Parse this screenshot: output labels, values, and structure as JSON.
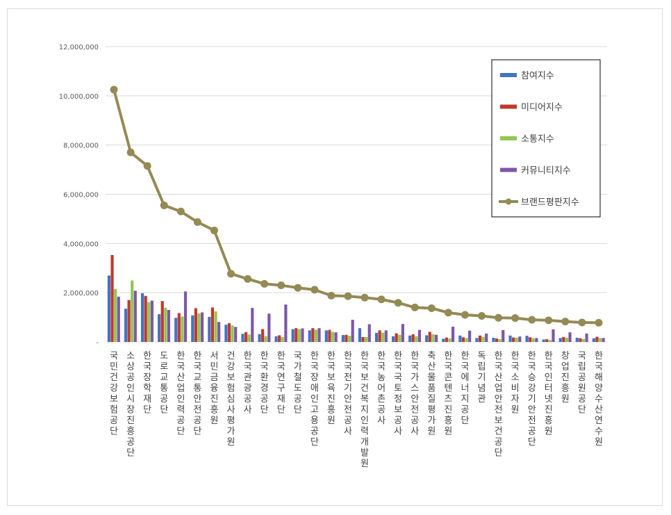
{
  "chart_data": {
    "type": "bar",
    "ylim": [
      0,
      12000000
    ],
    "yticks": [
      {
        "value": 0,
        "label": "-"
      },
      {
        "value": 2000000,
        "label": "2,000,000"
      },
      {
        "value": 4000000,
        "label": "4,000,000"
      },
      {
        "value": 6000000,
        "label": "6,000,000"
      },
      {
        "value": 8000000,
        "label": "8,000,000"
      },
      {
        "value": 10000000,
        "label": "10,000,000"
      },
      {
        "value": 12000000,
        "label": "12,000,000"
      }
    ],
    "grid": true,
    "legend_position": "top-right",
    "categories": [
      "국민건강보험공단",
      "소상공인시장진흥공단",
      "한국장학재단",
      "도로교통공단",
      "한국산업인력공단",
      "한국교통안전공단",
      "서민금융진흥원",
      "건강보험심사평가원",
      "한국관광공사",
      "한국환경공단",
      "한국연구재단",
      "국가철도공단",
      "한국장애인고용공단",
      "한국보육진흥원",
      "한국전기안전공사",
      "한국보건복지인력개발원",
      "한국농어촌공사",
      "한국국토정보공사",
      "한국가스안전공사",
      "축산물품질평가원",
      "한국콘텐츠진흥원",
      "한국에너지공단",
      "독립기념관",
      "한국산업안전보건공단",
      "한국소비자원",
      "한국승강기안전공단",
      "한국인터넷진흥원",
      "창업진흥원",
      "국립공원공단",
      "한국해양수산연수원"
    ],
    "series": [
      {
        "name": "참여지수",
        "type": "bar",
        "color": "#4472C4",
        "values": [
          2700000,
          1350000,
          1980000,
          1130000,
          980000,
          1080000,
          1020000,
          700000,
          330000,
          320000,
          230000,
          520000,
          470000,
          470000,
          280000,
          560000,
          370000,
          230000,
          260000,
          270000,
          130000,
          260000,
          160000,
          170000,
          260000,
          250000,
          100000,
          160000,
          170000,
          150000
        ]
      },
      {
        "name": "미디어지수",
        "type": "bar",
        "color": "#C0392B",
        "values": [
          3530000,
          1700000,
          1870000,
          1660000,
          1170000,
          1370000,
          1400000,
          760000,
          400000,
          520000,
          270000,
          560000,
          560000,
          490000,
          290000,
          200000,
          470000,
          350000,
          310000,
          410000,
          180000,
          190000,
          260000,
          140000,
          180000,
          190000,
          110000,
          200000,
          150000,
          210000
        ]
      },
      {
        "name": "소통지수",
        "type": "bar",
        "color": "#92C755",
        "values": [
          2150000,
          2500000,
          1620000,
          1390000,
          1030000,
          1160000,
          1240000,
          670000,
          300000,
          230000,
          200000,
          520000,
          500000,
          410000,
          250000,
          200000,
          380000,
          290000,
          230000,
          310000,
          140000,
          160000,
          210000,
          110000,
          170000,
          150000,
          80000,
          170000,
          120000,
          160000
        ]
      },
      {
        "name": "커뮤니티지수",
        "type": "bar",
        "color": "#7E57A8",
        "values": [
          1840000,
          2080000,
          1680000,
          1300000,
          2050000,
          1200000,
          810000,
          610000,
          1380000,
          1150000,
          1520000,
          550000,
          560000,
          390000,
          900000,
          720000,
          470000,
          730000,
          490000,
          290000,
          620000,
          460000,
          340000,
          480000,
          220000,
          160000,
          510000,
          390000,
          340000,
          160000
        ]
      },
      {
        "name": "브랜드평판지수",
        "type": "line",
        "color": "#948A54",
        "values": [
          10250000,
          7700000,
          7150000,
          5550000,
          5300000,
          4870000,
          4530000,
          2770000,
          2560000,
          2360000,
          2300000,
          2200000,
          2120000,
          1880000,
          1860000,
          1800000,
          1730000,
          1590000,
          1400000,
          1370000,
          1190000,
          1100000,
          1060000,
          980000,
          970000,
          900000,
          880000,
          830000,
          790000,
          780000
        ]
      }
    ]
  }
}
